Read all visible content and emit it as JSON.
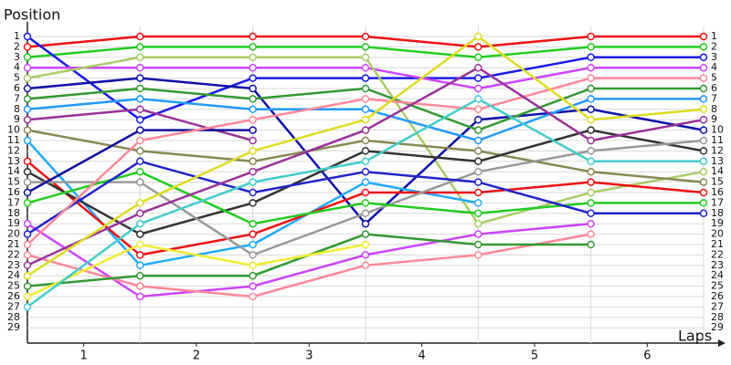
{
  "chart_data": {
    "type": "line",
    "y_title": "Position",
    "x_title": "Laps",
    "x": [
      0,
      1,
      2,
      3,
      4,
      5,
      6
    ],
    "xlim": [
      0,
      6
    ],
    "xticks": [
      {
        "value": 0.5,
        "label": "1"
      },
      {
        "value": 1.5,
        "label": "2"
      },
      {
        "value": 2.5,
        "label": "3"
      },
      {
        "value": 3.5,
        "label": "4"
      },
      {
        "value": 4.5,
        "label": "5"
      },
      {
        "value": 5.5,
        "label": "6"
      }
    ],
    "ylim": [
      0,
      30
    ],
    "y_inverted": true,
    "yticks": [
      1,
      2,
      3,
      4,
      5,
      6,
      7,
      8,
      9,
      10,
      11,
      12,
      13,
      14,
      15,
      16,
      17,
      18,
      19,
      20,
      21,
      22,
      23,
      24,
      25,
      26,
      27,
      28,
      29
    ],
    "grid": true,
    "series": [
      {
        "color": "#ee1111",
        "values": [
          2,
          1,
          1,
          1,
          2,
          1,
          1
        ]
      },
      {
        "color": "#22cc22",
        "values": [
          3,
          2,
          2,
          2,
          3,
          2,
          2
        ]
      },
      {
        "color": "#1a1aee",
        "values": [
          1,
          9,
          5,
          5,
          5,
          3,
          3
        ]
      },
      {
        "color": "#cc44ff",
        "values": [
          4,
          4,
          4,
          4,
          6,
          4,
          4
        ]
      },
      {
        "color": "#aacc66",
        "values": [
          5,
          3,
          3,
          3,
          19,
          16,
          14
        ]
      },
      {
        "color": "#1111aa",
        "values": [
          6,
          5,
          6,
          19,
          9,
          8,
          10
        ]
      },
      {
        "color": "#339933",
        "values": [
          7,
          6,
          7,
          6,
          10,
          6,
          6
        ]
      },
      {
        "color": "#2299ff",
        "values": [
          8,
          7,
          8,
          8,
          11,
          7,
          7
        ]
      },
      {
        "color": "#993399",
        "values": [
          9,
          8,
          11,
          null,
          null,
          null,
          null
        ]
      },
      {
        "color": "#888855",
        "values": [
          10,
          12,
          13,
          11,
          12,
          14,
          15
        ]
      },
      {
        "color": "#22aaff",
        "values": [
          11,
          23,
          21,
          15,
          17,
          null,
          null
        ]
      },
      {
        "color": "#ee1111",
        "values": [
          13,
          22,
          20,
          16,
          16,
          15,
          16
        ]
      },
      {
        "color": "#333333",
        "values": [
          14,
          20,
          17,
          12,
          13,
          10,
          12
        ]
      },
      {
        "color": "#999999",
        "values": [
          15,
          15,
          22,
          18,
          14,
          12,
          11
        ]
      },
      {
        "color": "#111199",
        "values": [
          16,
          10,
          10,
          null,
          null,
          null,
          null
        ]
      },
      {
        "color": "#22cc22",
        "values": [
          17,
          14,
          19,
          17,
          18,
          17,
          17
        ]
      },
      {
        "color": "#cc44ff",
        "values": [
          19,
          26,
          25,
          22,
          20,
          19,
          null
        ]
      },
      {
        "color": "#2222cc",
        "values": [
          20,
          13,
          16,
          14,
          15,
          18,
          18
        ]
      },
      {
        "color": "#ff8899",
        "values": [
          21,
          11,
          9,
          7,
          8,
          5,
          5
        ]
      },
      {
        "color": "#ff8899",
        "values": [
          22,
          25,
          26,
          23,
          22,
          20,
          null
        ]
      },
      {
        "color": "#993399",
        "values": [
          23,
          18,
          14,
          10,
          4,
          11,
          9
        ]
      },
      {
        "color": "#dddd22",
        "values": [
          24,
          17,
          12,
          9,
          1,
          9,
          8
        ]
      },
      {
        "color": "#339933",
        "values": [
          25,
          24,
          24,
          20,
          21,
          21,
          null
        ]
      },
      {
        "color": "#eeee33",
        "values": [
          26,
          21,
          23,
          21,
          null,
          null,
          null
        ]
      },
      {
        "color": "#44cccc",
        "values": [
          27,
          19,
          15,
          13,
          7,
          13,
          13
        ]
      }
    ]
  }
}
